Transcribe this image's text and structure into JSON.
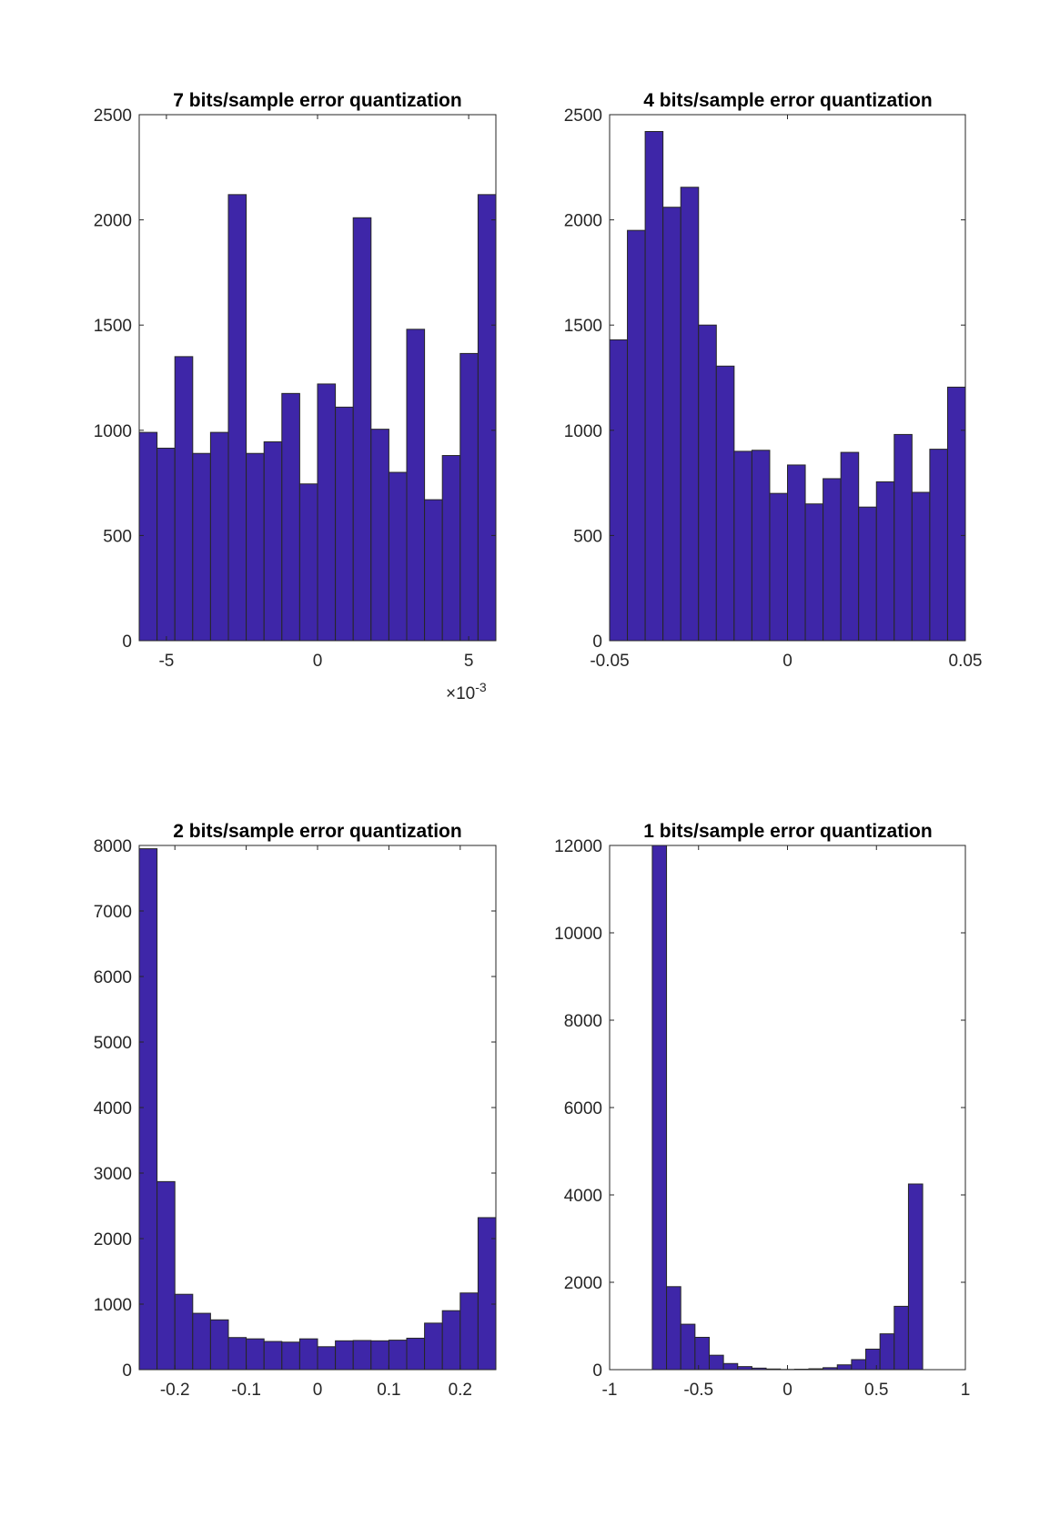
{
  "colors": {
    "bar_fill": "#3e26a8",
    "bar_edge": "#262626",
    "axis": "#262626",
    "background": "#ffffff"
  },
  "chart_data": [
    {
      "type": "bar",
      "title": "7 bits/sample error quantization",
      "xlabel": "",
      "ylabel": "",
      "xlim": [
        -0.0059,
        0.0059
      ],
      "ylim": [
        0,
        2500
      ],
      "grid": false,
      "x_tick_values": [
        -0.005,
        0,
        0.005
      ],
      "x_tick_labels": [
        "-5",
        "0",
        "5"
      ],
      "x_exponent_label": "×10",
      "x_exponent_power": "-3",
      "y_tick_values": [
        0,
        500,
        1000,
        1500,
        2000,
        2500
      ],
      "y_tick_labels": [
        "0",
        "500",
        "1000",
        "1500",
        "2000",
        "2500"
      ],
      "bin_edges": [
        -0.0059,
        0.0059
      ],
      "values": [
        990,
        915,
        1350,
        890,
        990,
        2120,
        890,
        945,
        1175,
        745,
        1220,
        1110,
        2010,
        1005,
        800,
        1480,
        670,
        880,
        1365,
        2120
      ]
    },
    {
      "type": "bar",
      "title": "4 bits/sample error quantization",
      "xlabel": "",
      "ylabel": "",
      "xlim": [
        -0.05,
        0.05
      ],
      "ylim": [
        0,
        2500
      ],
      "grid": false,
      "x_tick_values": [
        -0.05,
        0,
        0.05
      ],
      "x_tick_labels": [
        "-0.05",
        "0",
        "0.05"
      ],
      "y_tick_values": [
        0,
        500,
        1000,
        1500,
        2000,
        2500
      ],
      "y_tick_labels": [
        "0",
        "500",
        "1000",
        "1500",
        "2000",
        "2500"
      ],
      "bin_edges": [
        -0.05,
        0.05
      ],
      "values": [
        1430,
        1950,
        2420,
        2060,
        2155,
        1500,
        1305,
        900,
        905,
        700,
        835,
        650,
        770,
        895,
        635,
        755,
        980,
        705,
        910,
        1205
      ]
    },
    {
      "type": "bar",
      "title": "2 bits/sample error quantization",
      "xlabel": "",
      "ylabel": "",
      "xlim": [
        -0.25,
        0.25
      ],
      "ylim": [
        0,
        8000
      ],
      "grid": false,
      "x_tick_values": [
        -0.2,
        -0.1,
        0,
        0.1,
        0.2
      ],
      "x_tick_labels": [
        "-0.2",
        "-0.1",
        "0",
        "0.1",
        "0.2"
      ],
      "y_tick_values": [
        0,
        1000,
        2000,
        3000,
        4000,
        5000,
        6000,
        7000,
        8000
      ],
      "y_tick_labels": [
        "0",
        "1000",
        "2000",
        "3000",
        "4000",
        "5000",
        "6000",
        "7000",
        "8000"
      ],
      "bin_edges": [
        -0.25,
        0.25
      ],
      "values": [
        7950,
        2870,
        1150,
        860,
        760,
        490,
        470,
        430,
        420,
        470,
        350,
        440,
        445,
        440,
        450,
        480,
        710,
        900,
        1170,
        2320
      ]
    },
    {
      "type": "bar",
      "title": "1 bits/sample error quantization",
      "xlabel": "",
      "ylabel": "",
      "xlim": [
        -1,
        1
      ],
      "ylim": [
        0,
        12000
      ],
      "grid": false,
      "x_tick_values": [
        -1,
        -0.5,
        0,
        0.5,
        1
      ],
      "x_tick_labels": [
        "-1",
        "-0.5",
        "0",
        "0.5",
        "1"
      ],
      "y_tick_values": [
        0,
        2000,
        4000,
        6000,
        8000,
        10000,
        12000
      ],
      "y_tick_labels": [
        "0",
        "2000",
        "4000",
        "6000",
        "8000",
        "10000",
        "12000"
      ],
      "bin_edges": [
        -0.76,
        0.76
      ],
      "values": [
        12000,
        1900,
        1040,
        740,
        330,
        140,
        70,
        35,
        15,
        5,
        10,
        20,
        45,
        110,
        230,
        470,
        820,
        1450,
        4250
      ]
    }
  ]
}
